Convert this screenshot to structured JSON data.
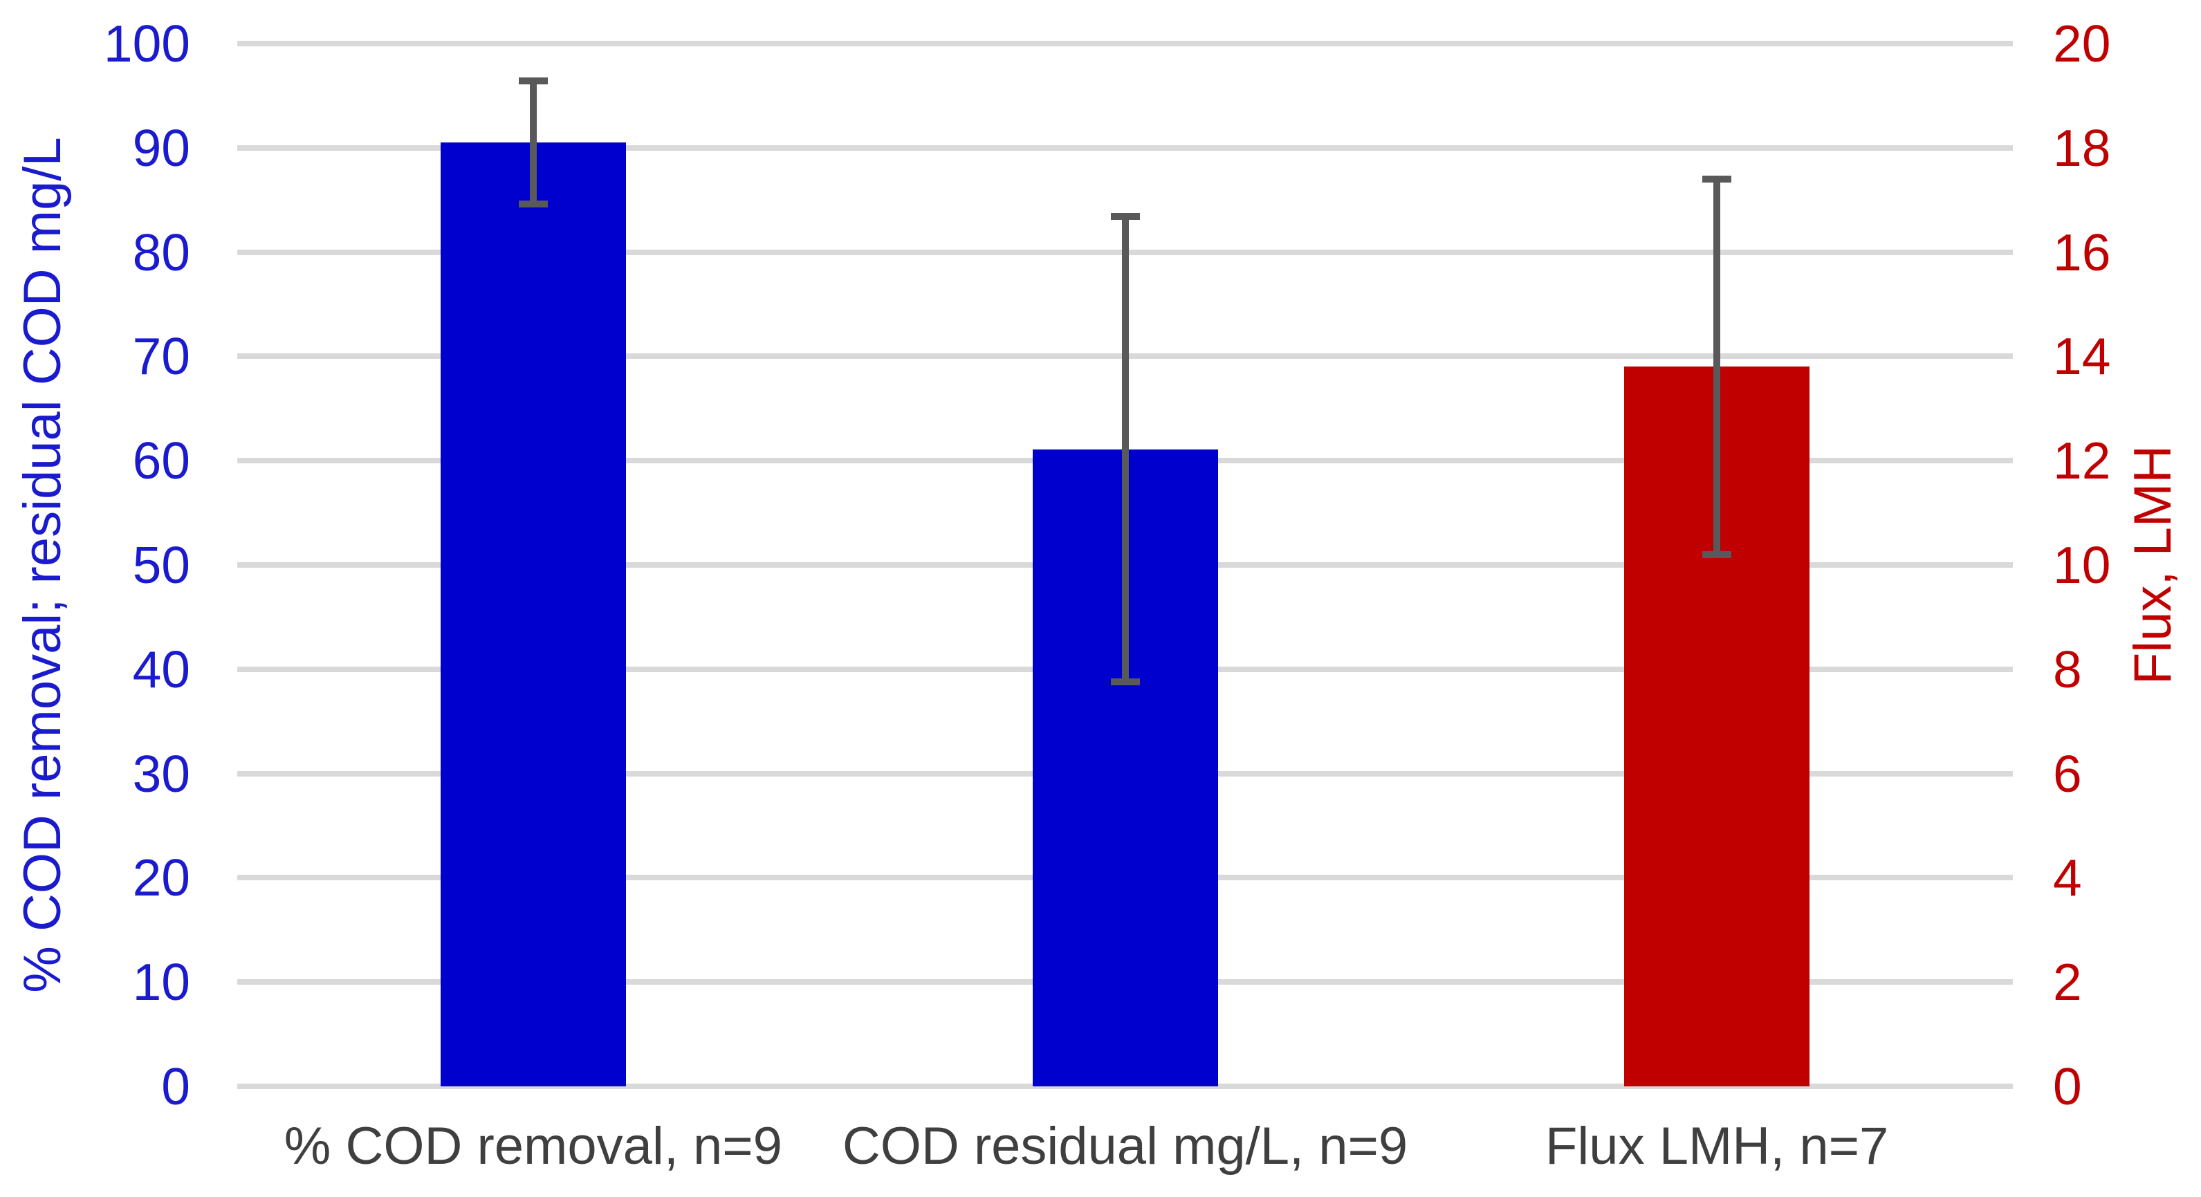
{
  "chart_data": {
    "type": "bar",
    "title": "",
    "categories": [
      "% COD removal, n=9",
      "COD residual mg/L, n=9",
      "Flux LMH, n=7"
    ],
    "series": [
      {
        "category": "% COD removal, n=9",
        "axis": "left",
        "value": 90.5,
        "error_plus": 5.9,
        "error_minus": 5.9,
        "color": "#0000CE"
      },
      {
        "category": "COD residual mg/L, n=9",
        "axis": "left",
        "value": 61.1,
        "error_plus": 22.3,
        "error_minus": 22.3,
        "color": "#0000CE"
      },
      {
        "category": "Flux LMH, n=7",
        "axis": "right",
        "value": 13.8,
        "error_plus": 3.6,
        "error_minus": 3.6,
        "color": "#C00000"
      }
    ],
    "left_axis": {
      "label": "% COD removal; residual COD mg/L",
      "min": 0,
      "max": 100,
      "step": 10,
      "ticks": [
        0,
        10,
        20,
        30,
        40,
        50,
        60,
        70,
        80,
        90,
        100
      ],
      "color": "#1A1ACE"
    },
    "right_axis": {
      "label": "Flux, LMH",
      "min": 0,
      "max": 20,
      "step": 2,
      "ticks": [
        0,
        2,
        4,
        6,
        8,
        10,
        12,
        14,
        16,
        18,
        20
      ],
      "color": "#C00000"
    },
    "gridlines": {
      "visible": true,
      "color": "#D9D9D9"
    },
    "error_bar_color": "#595959",
    "category_label_color": "#3F3F3F",
    "background": "#FFFFFF",
    "legend": "none"
  }
}
